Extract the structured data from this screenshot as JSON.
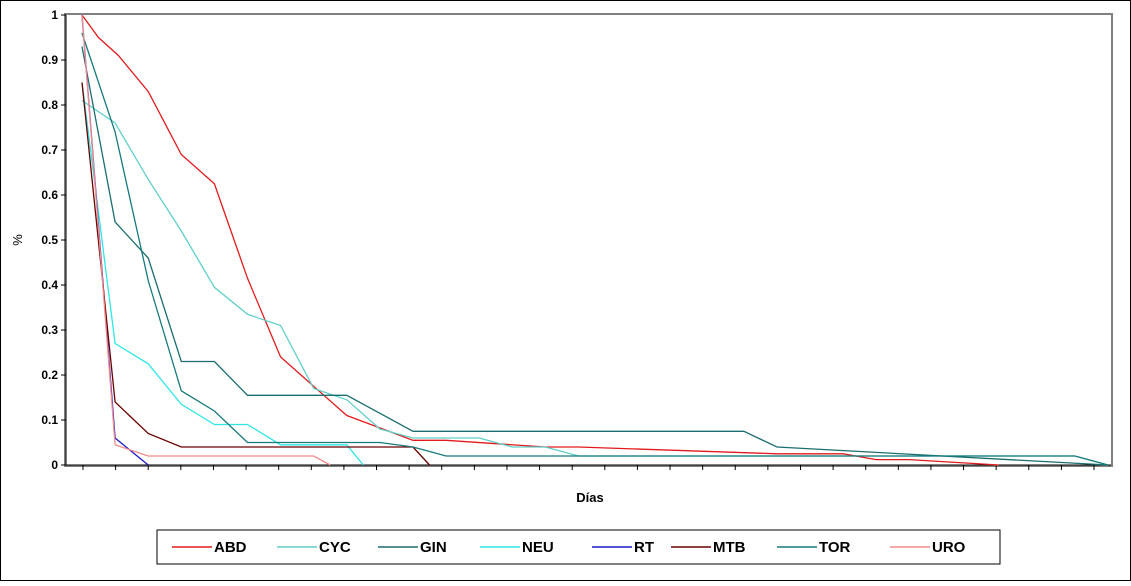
{
  "chart_data": {
    "type": "line",
    "title": "",
    "xlabel": "Días",
    "ylabel": "%",
    "ylim": [
      0,
      1
    ],
    "xlim": [
      0,
      31
    ],
    "yticks": [
      "0",
      "0.1",
      "0.2",
      "0.3",
      "0.4",
      "0.5",
      "0.6",
      "0.7",
      "0.8",
      "0.9",
      "1"
    ],
    "grid": false,
    "legend_position": "bottom",
    "series": [
      {
        "name": "ABD",
        "color": "#e31a1c",
        "x": [
          0,
          0.5,
          1.1,
          2,
          3,
          4,
          5,
          6,
          7,
          8,
          10,
          11,
          14,
          15,
          21,
          23,
          24,
          25,
          27.7
        ],
        "y": [
          1,
          0.95,
          0.91,
          0.83,
          0.69,
          0.625,
          0.415,
          0.24,
          0.175,
          0.11,
          0.055,
          0.055,
          0.04,
          0.04,
          0.025,
          0.025,
          0.012,
          0.012,
          0
        ]
      },
      {
        "name": "CYC",
        "color": "#5fcfc8",
        "x": [
          0,
          1,
          2,
          3,
          4,
          5,
          6,
          7,
          8,
          9,
          10,
          11,
          12,
          13,
          14,
          15,
          30,
          31
        ],
        "y": [
          0.81,
          0.76,
          0.635,
          0.52,
          0.395,
          0.335,
          0.31,
          0.17,
          0.145,
          0.08,
          0.06,
          0.06,
          0.06,
          0.04,
          0.04,
          0.02,
          0.02,
          0
        ]
      },
      {
        "name": "GIN",
        "color": "#1b6e6e",
        "x": [
          0,
          1,
          2,
          3,
          4,
          5,
          6,
          7,
          8,
          9,
          10,
          11,
          20,
          21,
          31
        ],
        "y": [
          0.93,
          0.54,
          0.46,
          0.23,
          0.23,
          0.155,
          0.155,
          0.155,
          0.155,
          0.115,
          0.075,
          0.075,
          0.075,
          0.04,
          0
        ]
      },
      {
        "name": "NEU",
        "color": "#2ee6e6",
        "x": [
          0,
          1,
          2,
          3,
          4,
          5,
          6,
          7,
          8,
          8.5
        ],
        "y": [
          0.85,
          0.27,
          0.225,
          0.135,
          0.09,
          0.09,
          0.045,
          0.045,
          0.045,
          0
        ]
      },
      {
        "name": "RT",
        "color": "#1a1acc",
        "x": [
          0,
          1,
          1.5,
          2
        ],
        "y": [
          1,
          0.06,
          0.03,
          0
        ]
      },
      {
        "name": "MTB",
        "color": "#6b0000",
        "x": [
          0,
          1,
          2,
          3,
          4,
          5,
          6,
          7,
          8,
          9,
          10,
          10.5
        ],
        "y": [
          0.85,
          0.14,
          0.07,
          0.04,
          0.04,
          0.04,
          0.04,
          0.04,
          0.04,
          0.04,
          0.04,
          0
        ]
      },
      {
        "name": "TOR",
        "color": "#177a7a",
        "x": [
          0,
          1,
          2,
          3,
          4,
          5,
          6,
          7,
          8,
          9,
          10,
          11,
          12,
          13,
          14,
          15,
          20,
          21,
          22,
          25,
          30,
          31
        ],
        "y": [
          0.96,
          0.74,
          0.41,
          0.165,
          0.12,
          0.05,
          0.05,
          0.05,
          0.05,
          0.05,
          0.04,
          0.02,
          0.02,
          0.02,
          0.02,
          0.02,
          0.02,
          0.02,
          0.02,
          0.02,
          0.02,
          0
        ]
      },
      {
        "name": "URO",
        "color": "#f28b8b",
        "x": [
          0,
          1,
          2,
          3,
          4,
          5,
          6,
          7,
          7.5
        ],
        "y": [
          1,
          0.045,
          0.02,
          0.02,
          0.02,
          0.02,
          0.02,
          0.02,
          0
        ]
      }
    ]
  }
}
